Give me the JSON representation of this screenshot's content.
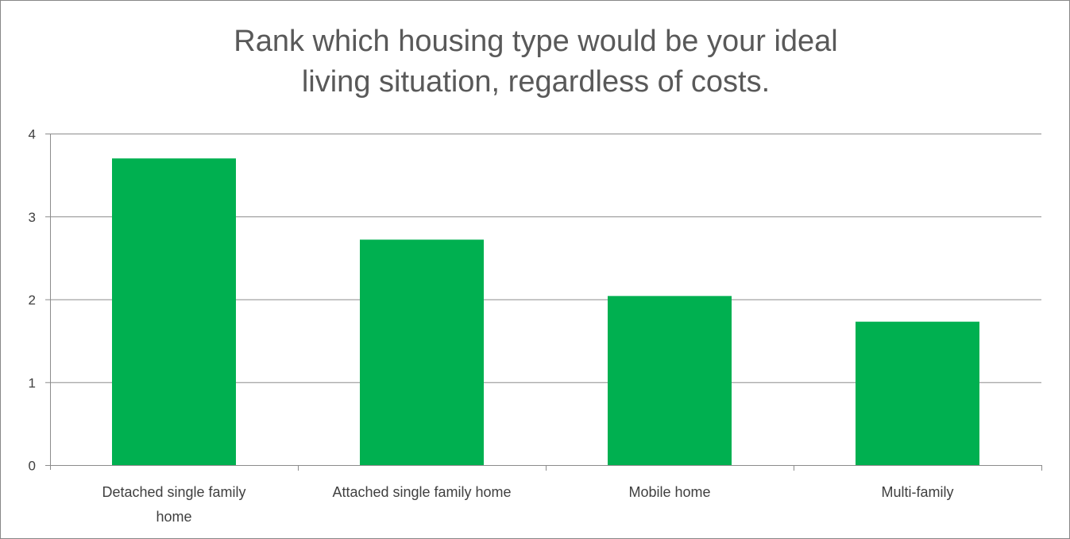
{
  "chart_data": {
    "type": "bar",
    "title_lines": [
      "Rank which housing type would be your ideal",
      "living situation, regardless of costs."
    ],
    "categories": [
      "Detached single family home",
      "Attached single family home",
      "Mobile home",
      "Multi-family"
    ],
    "category_label_lines": [
      [
        "Detached single family",
        "home"
      ],
      [
        "Attached single family home"
      ],
      [
        "Mobile home"
      ],
      [
        "Multi-family"
      ]
    ],
    "values": [
      3.7,
      2.72,
      2.04,
      1.73
    ],
    "ylim": [
      0,
      4
    ],
    "yticks": [
      "0",
      "1",
      "2",
      "3",
      "4"
    ],
    "xlabel": "",
    "ylabel": "",
    "grid": true,
    "legend": "none",
    "colors": {
      "bar": "#00b050",
      "grid": "#8c8c8c",
      "text": "#404040",
      "title": "#595959"
    }
  }
}
